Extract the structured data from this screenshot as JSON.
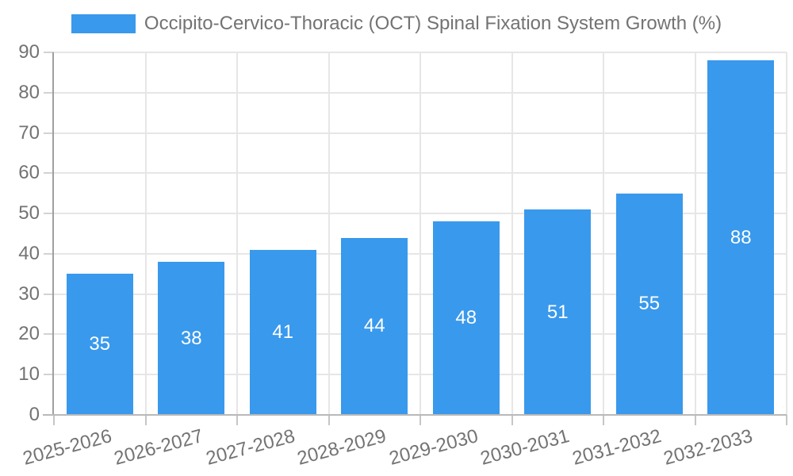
{
  "chart_data": {
    "type": "bar",
    "legend": {
      "label": "Occipito-Cervico-Thoracic (OCT) Spinal Fixation System Growth (%)",
      "position": "top"
    },
    "categories": [
      "2025-2026",
      "2026-2027",
      "2027-2028",
      "2028-2029",
      "2029-2030",
      "2030-2031",
      "2031-2032",
      "2032-2033"
    ],
    "values": [
      35,
      38,
      41,
      44,
      48,
      51,
      55,
      88
    ],
    "value_labels": [
      "35",
      "38",
      "41",
      "44",
      "48",
      "51",
      "55",
      "88"
    ],
    "ylim": [
      0,
      90
    ],
    "yticks": [
      0,
      10,
      20,
      30,
      40,
      50,
      60,
      70,
      80,
      90
    ],
    "grid": true,
    "x_tick_rotation_deg": -15,
    "colors": {
      "bar": "#3999ec",
      "value_label": "#ffffff",
      "grid": "#e6e6e6",
      "y_axis_line": "#a0a0a0",
      "x_axis_line": "#b9b9b9",
      "y_tick_mark": "#d2d2d2",
      "x_tick_mark": "#c6c6c6",
      "axis_text": "#737373"
    }
  }
}
